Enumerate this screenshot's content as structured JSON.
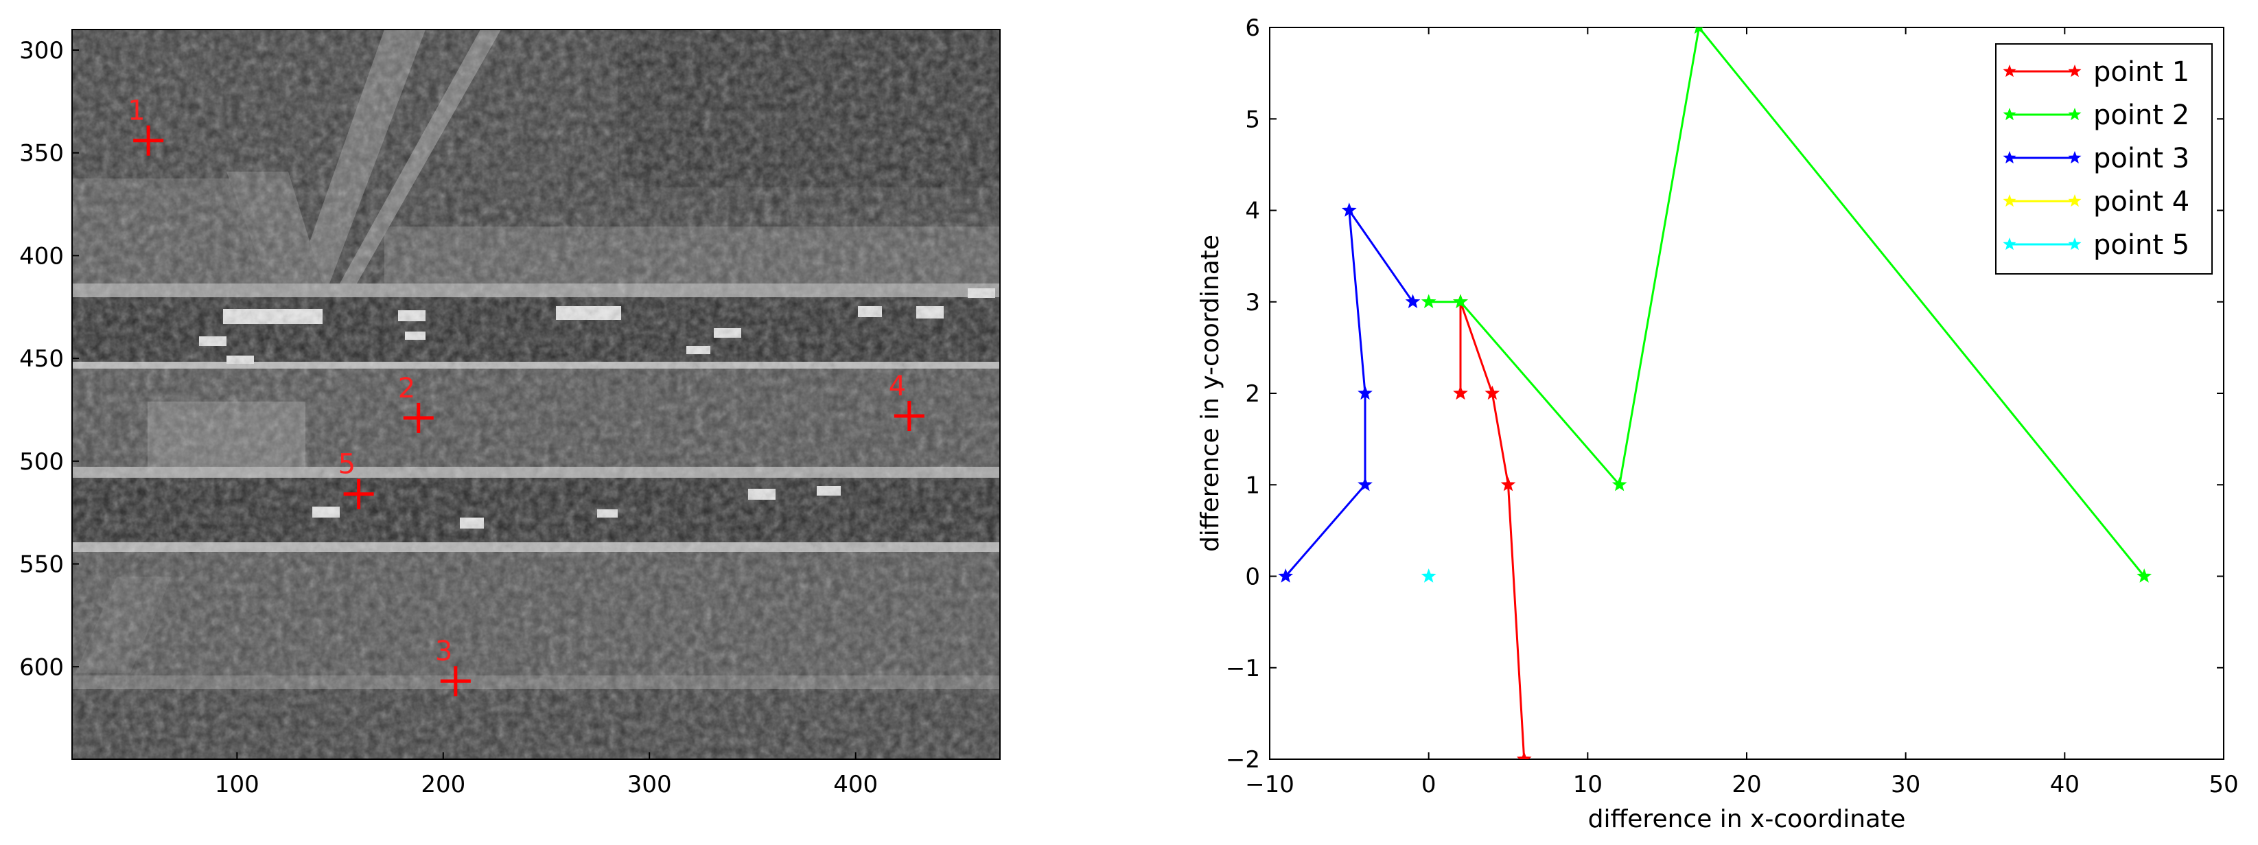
{
  "chart_data": [
    {
      "type": "image",
      "description_of_content": "",
      "y_ticks": [
        "300",
        "350",
        "400",
        "450",
        "500",
        "550",
        "600"
      ],
      "y_tick_values": [
        300,
        350,
        400,
        450,
        500,
        550,
        600
      ],
      "x_ticks": [
        "100",
        "200",
        "300",
        "400"
      ],
      "x_tick_values": [
        100,
        200,
        300,
        400
      ],
      "xlim": [
        20,
        470
      ],
      "ylim": [
        645,
        290
      ],
      "markers": [
        {
          "label": "1",
          "x": 57,
          "y": 344
        },
        {
          "label": "2",
          "x": 188,
          "y": 479
        },
        {
          "label": "3",
          "x": 206,
          "y": 607
        },
        {
          "label": "4",
          "x": 426,
          "y": 478
        },
        {
          "label": "5",
          "x": 159,
          "y": 516
        }
      ],
      "marker_color": "#ff0000"
    },
    {
      "type": "line",
      "xlabel": "difference in x-coordinate",
      "ylabel": "difference in y-coordinate",
      "xlim": [
        -10,
        50
      ],
      "ylim": [
        -2,
        6
      ],
      "x_ticks": [
        "−10",
        "0",
        "10",
        "20",
        "30",
        "40",
        "50"
      ],
      "x_tick_values": [
        -10,
        0,
        10,
        20,
        30,
        40,
        50
      ],
      "y_ticks": [
        "−2",
        "−1",
        "0",
        "1",
        "2",
        "3",
        "4",
        "5",
        "6"
      ],
      "y_tick_values": [
        -2,
        -1,
        0,
        1,
        2,
        3,
        4,
        5,
        6
      ],
      "grid": false,
      "legend_position": "top-right",
      "series": [
        {
          "name": "point 1",
          "color": "#ff0000",
          "x": [
            2,
            2,
            4,
            5,
            6
          ],
          "y": [
            2,
            3,
            2,
            1,
            -2
          ]
        },
        {
          "name": "point 2",
          "color": "#00ff00",
          "x": [
            0,
            2,
            12,
            17,
            45
          ],
          "y": [
            3,
            3,
            1,
            6,
            0
          ]
        },
        {
          "name": "point 3",
          "color": "#0000ff",
          "x": [
            -9,
            -4,
            -4,
            -5,
            -1
          ],
          "y": [
            0,
            1,
            2,
            4,
            3
          ]
        },
        {
          "name": "point 4",
          "color": "#ffff00",
          "x": [],
          "y": []
        },
        {
          "name": "point 5",
          "color": "#00ffff",
          "x": [
            0
          ],
          "y": [
            0
          ]
        }
      ]
    }
  ]
}
